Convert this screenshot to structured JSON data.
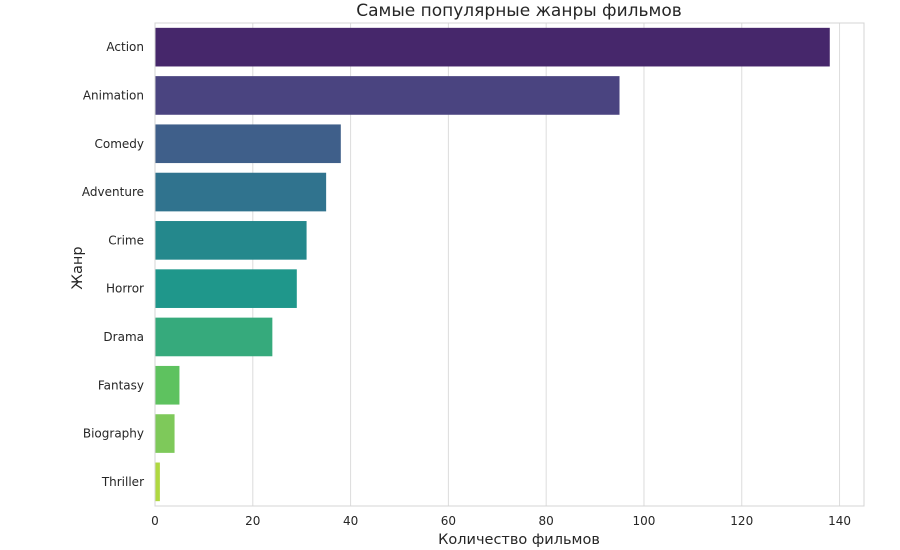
{
  "chart_data": {
    "type": "bar",
    "orientation": "horizontal",
    "title": "Самые популярные жанры фильмов",
    "xlabel": "Количество фильмов",
    "ylabel": "Жанр",
    "categories": [
      "Action",
      "Animation",
      "Comedy",
      "Adventure",
      "Crime",
      "Horror",
      "Drama",
      "Fantasy",
      "Biography",
      "Thriller"
    ],
    "values": [
      138,
      95,
      38,
      35,
      31,
      29,
      24,
      5,
      4,
      1
    ],
    "xlim": [
      0,
      145
    ],
    "xticks": [
      0,
      20,
      40,
      60,
      80,
      100,
      120,
      140
    ],
    "grid": "x",
    "palette": "viridis",
    "colors": [
      "#46276b",
      "#4a4480",
      "#3f5f8a",
      "#30738e",
      "#24888c",
      "#1f978b",
      "#36aa7c",
      "#5ec25f",
      "#7ec95a",
      "#afd841"
    ]
  }
}
